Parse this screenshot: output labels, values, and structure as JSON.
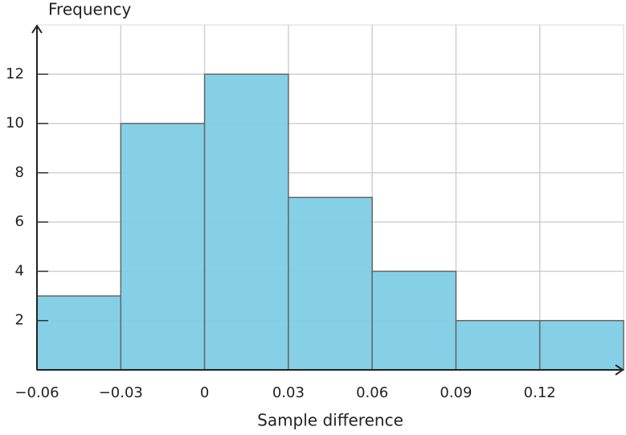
{
  "chart_data": {
    "type": "histogram",
    "x_label": "Sample difference",
    "y_label": "Frequency",
    "bins": [
      -0.06,
      -0.03,
      0,
      0.03,
      0.06,
      0.09,
      0.12,
      0.15
    ],
    "values": [
      3,
      10,
      12,
      7,
      4,
      2,
      2
    ],
    "color": "#7ecde6",
    "edge_color": "#666666",
    "xlim": [
      -0.06,
      0.15
    ],
    "xticks": [
      {
        "value": -0.06,
        "label": "−0.06"
      },
      {
        "value": -0.03,
        "label": "−0.03"
      },
      0,
      0.03,
      0.06,
      0.09,
      0.12
    ],
    "ylim": [
      0,
      14
    ],
    "yticks": [
      2,
      4,
      6,
      8,
      10,
      12
    ],
    "grid": true
  }
}
